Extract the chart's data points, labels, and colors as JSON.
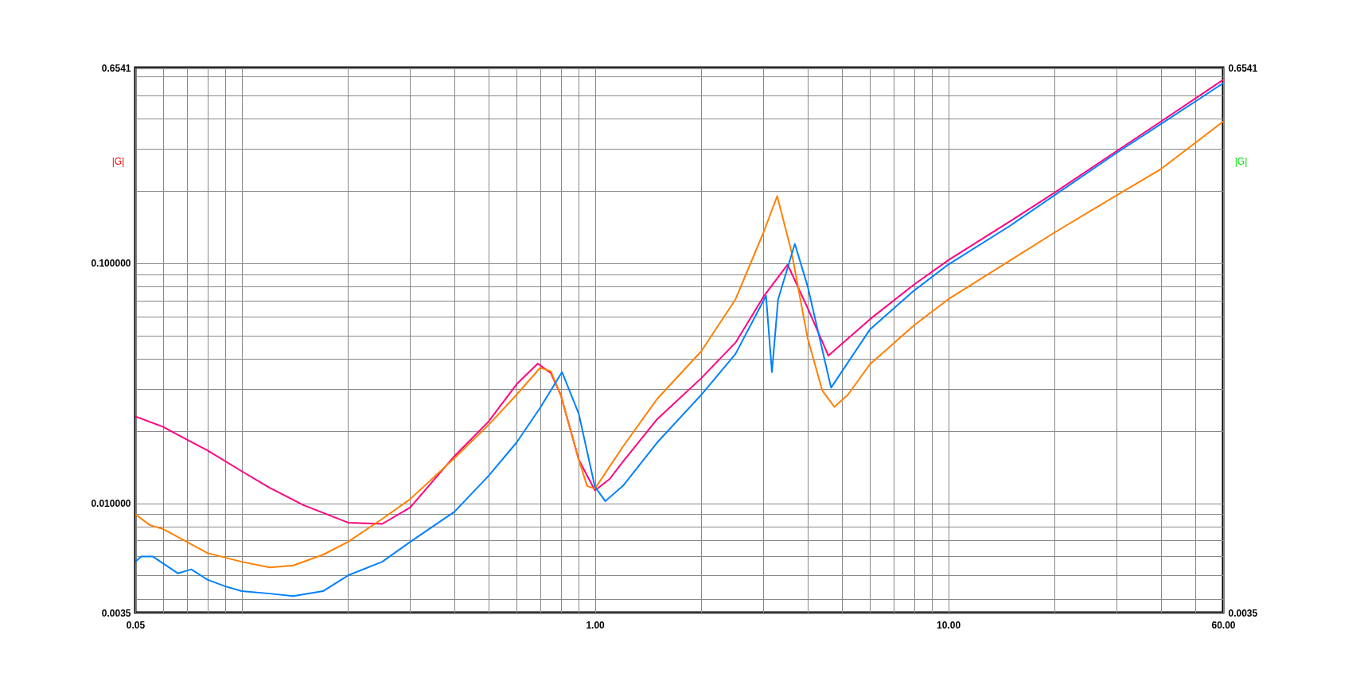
{
  "chart_data": {
    "type": "line",
    "ylabel": "|G|",
    "y2label": "|G|",
    "log": "xy",
    "grid": true,
    "line_style": "solid",
    "xlim": [
      0.05,
      60
    ],
    "ylim": [
      0.0035,
      0.6541
    ],
    "y2lim": [
      0.0035,
      0.6541
    ],
    "xticks": [
      {
        "value": 0.05,
        "label": "0.05"
      },
      {
        "value": 0.06,
        "label": null
      },
      {
        "value": 0.07,
        "label": null
      },
      {
        "value": 0.08,
        "label": null
      },
      {
        "value": 0.09,
        "label": null
      },
      {
        "value": 0.1,
        "label": null
      },
      {
        "value": 0.2,
        "label": null
      },
      {
        "value": 0.3,
        "label": null
      },
      {
        "value": 0.4,
        "label": null
      },
      {
        "value": 0.5,
        "label": null
      },
      {
        "value": 0.6,
        "label": null
      },
      {
        "value": 0.7,
        "label": null
      },
      {
        "value": 0.8,
        "label": null
      },
      {
        "value": 0.9,
        "label": null
      },
      {
        "value": 1,
        "label": "1.00"
      },
      {
        "value": 2,
        "label": null
      },
      {
        "value": 3,
        "label": null
      },
      {
        "value": 4,
        "label": null
      },
      {
        "value": 5,
        "label": null
      },
      {
        "value": 6,
        "label": null
      },
      {
        "value": 7,
        "label": null
      },
      {
        "value": 8,
        "label": null
      },
      {
        "value": 9,
        "label": null
      },
      {
        "value": 10,
        "label": "10.00"
      },
      {
        "value": 20,
        "label": null
      },
      {
        "value": 30,
        "label": null
      },
      {
        "value": 40,
        "label": null
      },
      {
        "value": 50,
        "label": null
      },
      {
        "value": 60,
        "label": "60.00"
      }
    ],
    "yticks": [
      {
        "value": 0.0035,
        "label": "0.0035"
      },
      {
        "value": 0.004,
        "label": null
      },
      {
        "value": 0.005,
        "label": null
      },
      {
        "value": 0.006,
        "label": null
      },
      {
        "value": 0.007,
        "label": null
      },
      {
        "value": 0.008,
        "label": null
      },
      {
        "value": 0.009,
        "label": null
      },
      {
        "value": 0.01,
        "label": "0.010000"
      },
      {
        "value": 0.02,
        "label": null
      },
      {
        "value": 0.03,
        "label": null
      },
      {
        "value": 0.04,
        "label": null
      },
      {
        "value": 0.05,
        "label": null
      },
      {
        "value": 0.06,
        "label": null
      },
      {
        "value": 0.07,
        "label": null
      },
      {
        "value": 0.08,
        "label": null
      },
      {
        "value": 0.09,
        "label": null
      },
      {
        "value": 0.1,
        "label": "0.100000"
      },
      {
        "value": 0.2,
        "label": null
      },
      {
        "value": 0.3,
        "label": null
      },
      {
        "value": 0.4,
        "label": null
      },
      {
        "value": 0.5,
        "label": null
      },
      {
        "value": 0.6,
        "label": null
      },
      {
        "value": 0.6541,
        "label": "0.6541"
      }
    ],
    "y2ticks": [
      {
        "value": 0.0035,
        "label": "0.0035"
      },
      {
        "value": 0.6541,
        "label": "0.6541"
      }
    ],
    "series": [
      {
        "color": "#ff0080",
        "x": [
          0.05,
          0.06,
          0.07,
          0.08,
          0.1,
          0.12,
          0.15,
          0.2,
          0.25,
          0.3,
          0.4,
          0.5,
          0.6,
          0.689,
          0.75,
          0.8,
          0.9,
          1.0,
          1.1,
          1.2,
          1.5,
          2,
          2.5,
          3,
          3.51,
          4,
          4.58,
          6,
          8,
          10,
          15,
          20,
          30,
          40,
          60
        ],
        "values": [
          0.023,
          0.0208,
          0.0184,
          0.0166,
          0.0136,
          0.0116,
          0.0098,
          0.0083,
          0.0082,
          0.0096,
          0.0157,
          0.0219,
          0.0313,
          0.0382,
          0.0349,
          0.0283,
          0.0152,
          0.0113,
          0.0126,
          0.0149,
          0.0224,
          0.0332,
          0.0467,
          0.0726,
          0.0988,
          0.0651,
          0.0412,
          0.0584,
          0.0815,
          0.103,
          0.15,
          0.197,
          0.294,
          0.39,
          0.582
        ]
      },
      {
        "color": "#ff8000",
        "x": [
          0.05,
          0.055,
          0.06,
          0.07,
          0.08,
          0.1,
          0.12,
          0.14,
          0.17,
          0.2,
          0.25,
          0.3,
          0.4,
          0.5,
          0.6,
          0.7,
          0.75,
          0.8,
          0.9,
          0.95,
          1.0,
          1.2,
          1.5,
          2,
          2.5,
          3,
          3.28,
          3.6,
          4,
          4.4,
          4.76,
          5.2,
          6,
          8,
          10,
          15,
          20,
          30,
          40,
          60
        ],
        "values": [
          0.009,
          0.0081,
          0.0078,
          0.0069,
          0.0062,
          0.0057,
          0.0054,
          0.0055,
          0.0061,
          0.0069,
          0.0086,
          0.0104,
          0.0154,
          0.0212,
          0.0283,
          0.0367,
          0.0355,
          0.0283,
          0.0152,
          0.0118,
          0.0115,
          0.0172,
          0.0272,
          0.043,
          0.0708,
          0.1344,
          0.1906,
          0.1119,
          0.0487,
          0.0295,
          0.0252,
          0.0283,
          0.0379,
          0.0551,
          0.0708,
          0.103,
          0.1344,
          0.1923,
          0.247,
          0.39
        ]
      },
      {
        "color": "#0080ff",
        "x": [
          0.05,
          0.052,
          0.056,
          0.06,
          0.066,
          0.072,
          0.08,
          0.09,
          0.1,
          0.12,
          0.14,
          0.17,
          0.2,
          0.25,
          0.3,
          0.4,
          0.5,
          0.6,
          0.7,
          0.807,
          0.9,
          1.0,
          1.07,
          1.2,
          1.5,
          2,
          2.5,
          3.05,
          3.17,
          3.3,
          3.68,
          4,
          4.66,
          6,
          8,
          10,
          15,
          20,
          30,
          40,
          60
        ],
        "values": [
          0.0057,
          0.006,
          0.006,
          0.0056,
          0.0051,
          0.0053,
          0.0048,
          0.0045,
          0.0043,
          0.0042,
          0.0041,
          0.0043,
          0.005,
          0.0057,
          0.0069,
          0.0092,
          0.013,
          0.0179,
          0.025,
          0.0352,
          0.0236,
          0.0117,
          0.0102,
          0.0118,
          0.0179,
          0.0283,
          0.0419,
          0.0732,
          0.0352,
          0.0708,
          0.1206,
          0.0802,
          0.0303,
          0.0529,
          0.0769,
          0.0988,
          0.1437,
          0.1923,
          0.289,
          0.3805,
          0.563
        ]
      }
    ]
  }
}
